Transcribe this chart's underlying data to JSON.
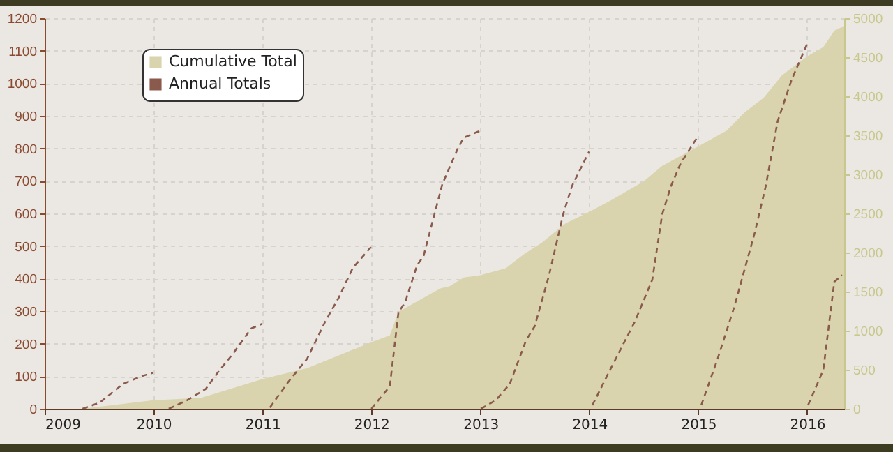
{
  "chart_data": {
    "type": "area",
    "xlim": [
      "2009-01-01",
      "2016-05-04"
    ],
    "xticks": [
      "2009",
      "2010",
      "2011",
      "2012",
      "2013",
      "2014",
      "2015",
      "2016"
    ],
    "ylim": [
      0,
      1200
    ],
    "yticks": [
      0,
      100,
      200,
      300,
      400,
      500,
      600,
      700,
      800,
      900,
      1000,
      1100,
      1200
    ],
    "y2lim": [
      0,
      5000
    ],
    "y2ticks": [
      0,
      500,
      1000,
      1500,
      2000,
      2500,
      3000,
      3500,
      4000,
      4500,
      5000
    ],
    "grid": true,
    "legend": "top left",
    "series": [
      {
        "name": "Cumulative Total",
        "axis": "y2",
        "color": "#d9d4ad",
        "x": [
          "2009-05-08",
          "2009-12-31",
          "2010-06-10",
          "2010-12-31",
          "2011-05-31",
          "2011-12-31",
          "2012-03-03",
          "2012-04-01",
          "2012-08-19",
          "2012-09-20",
          "2012-11-06",
          "2012-12-31",
          "2013-03-27",
          "2013-05-27",
          "2013-07-27",
          "2013-10-12",
          "2013-12-31",
          "2014-03-15",
          "2014-07-02",
          "2014-09-02",
          "2014-12-28",
          "2015-04-06",
          "2015-06-07",
          "2015-08-08",
          "2015-10-09",
          "2015-12-31",
          "2016-02-24",
          "2016-04-01",
          "2016-05-04"
        ],
        "values": [
          0,
          110,
          140,
          380,
          520,
          850,
          940,
          1240,
          1540,
          1570,
          1680,
          1710,
          1800,
          1980,
          2130,
          2370,
          2520,
          2670,
          2910,
          3110,
          3350,
          3560,
          3800,
          3980,
          4270,
          4510,
          4630,
          4840,
          4900
        ]
      },
      {
        "name": "Annual Totals",
        "type": "line",
        "line_style": "dashed",
        "color": "#8a5a4c",
        "x": [
          "2009-05-08",
          "2009-07-05",
          "2009-09-20",
          "2009-11-21",
          "2009-12-31",
          "2010-01-15",
          "2010-02-21",
          "2010-04-23",
          "2010-06-25",
          "2010-08-04",
          "2010-09-24",
          "2010-11-25",
          "2010-12-31",
          "2011-01-10",
          "2011-01-26",
          "2011-03-29",
          "2011-05-31",
          "2011-07-31",
          "2011-09-13",
          "2011-10-31",
          "2011-12-31",
          "2011-12-31T12:00",
          "2012-01-01",
          "2012-03-03",
          "2012-04-01",
          "2012-04-23",
          "2012-06-02",
          "2012-06-24",
          "2012-08-26",
          "2012-10-19",
          "2012-11-06",
          "2012-12-31",
          "2013-01-01",
          "2013-01-02",
          "2013-02-21",
          "2013-04-09",
          "2013-06-03",
          "2013-07-02",
          "2013-08-19",
          "2013-10-05",
          "2013-11-03",
          "2013-12-31",
          "2014-01-05",
          "2014-01-11",
          "2014-03-15",
          "2014-06-03",
          "2014-07-31",
          "2014-09-02",
          "2014-10-01",
          "2014-11-03",
          "2014-12-28",
          "2015-01-05",
          "2015-01-11",
          "2015-03-07",
          "2015-05-01",
          "2015-07-09",
          "2015-08-15",
          "2015-09-24",
          "2015-11-10",
          "2015-12-31",
          "2016-01-01",
          "2016-01-04",
          "2016-02-24",
          "2016-04-01",
          "2016-04-27"
        ],
        "values": [
          0,
          19,
          76,
          100,
          111,
          null,
          0,
          26,
          61,
          111,
          169,
          247,
          261,
          null,
          4,
          83,
          154,
          269,
          340,
          433,
          497,
          null,
          0,
          69,
          297,
          326,
          440,
          469,
          690,
          804,
          833,
          854,
          null,
          0,
          26,
          76,
          211,
          254,
          411,
          597,
          683,
          790,
          null,
          11,
          126,
          269,
          397,
          597,
          683,
          754,
          833,
          null,
          11,
          154,
          311,
          540,
          683,
          883,
          1011,
          1119,
          null,
          11,
          119,
          390,
          411
        ]
      }
    ]
  }
}
